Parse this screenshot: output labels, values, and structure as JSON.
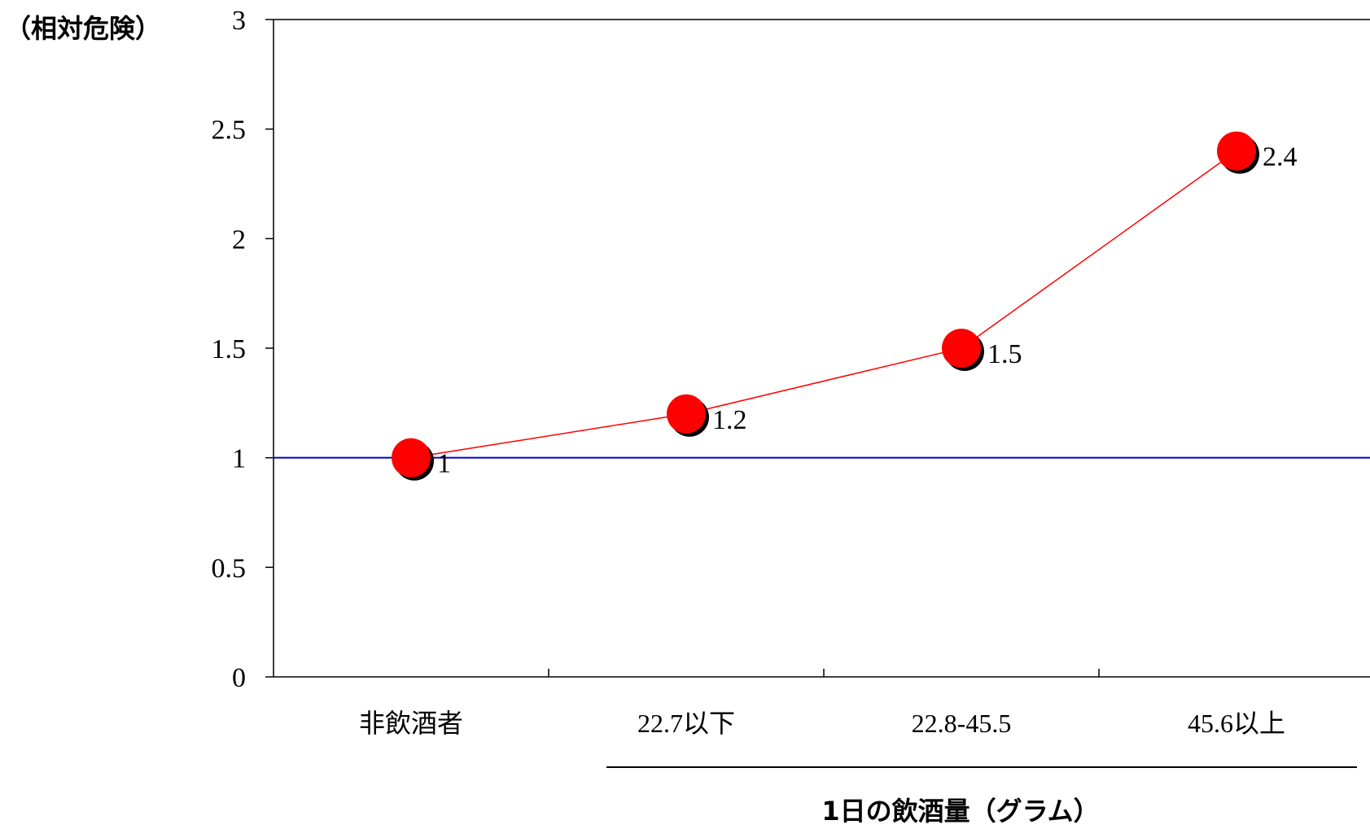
{
  "chart_data": {
    "type": "line",
    "ylabel": "（相対危険）",
    "xlabel": "1日の飲酒量（グラム）",
    "categories": [
      "非飲酒者",
      "22.7以下",
      "22.8-45.5",
      "45.6以上"
    ],
    "series": [
      {
        "values": [
          1,
          1.2,
          1.5,
          2.4
        ],
        "color": "#ff0000"
      }
    ],
    "data_labels": [
      "1",
      "1.2",
      "1.5",
      "2.4"
    ],
    "yticks": [
      "0",
      "0.5",
      "1",
      "1.5",
      "2",
      "2.5",
      "3"
    ],
    "ylim": [
      0,
      3
    ],
    "reference_line": {
      "y": 1,
      "color": "#0000cc"
    },
    "grid": false,
    "legend": "none",
    "colors": {
      "marker": "#ff0000",
      "marker_shadow": "#000000",
      "line": "#ff0000",
      "axis": "#000000"
    }
  }
}
